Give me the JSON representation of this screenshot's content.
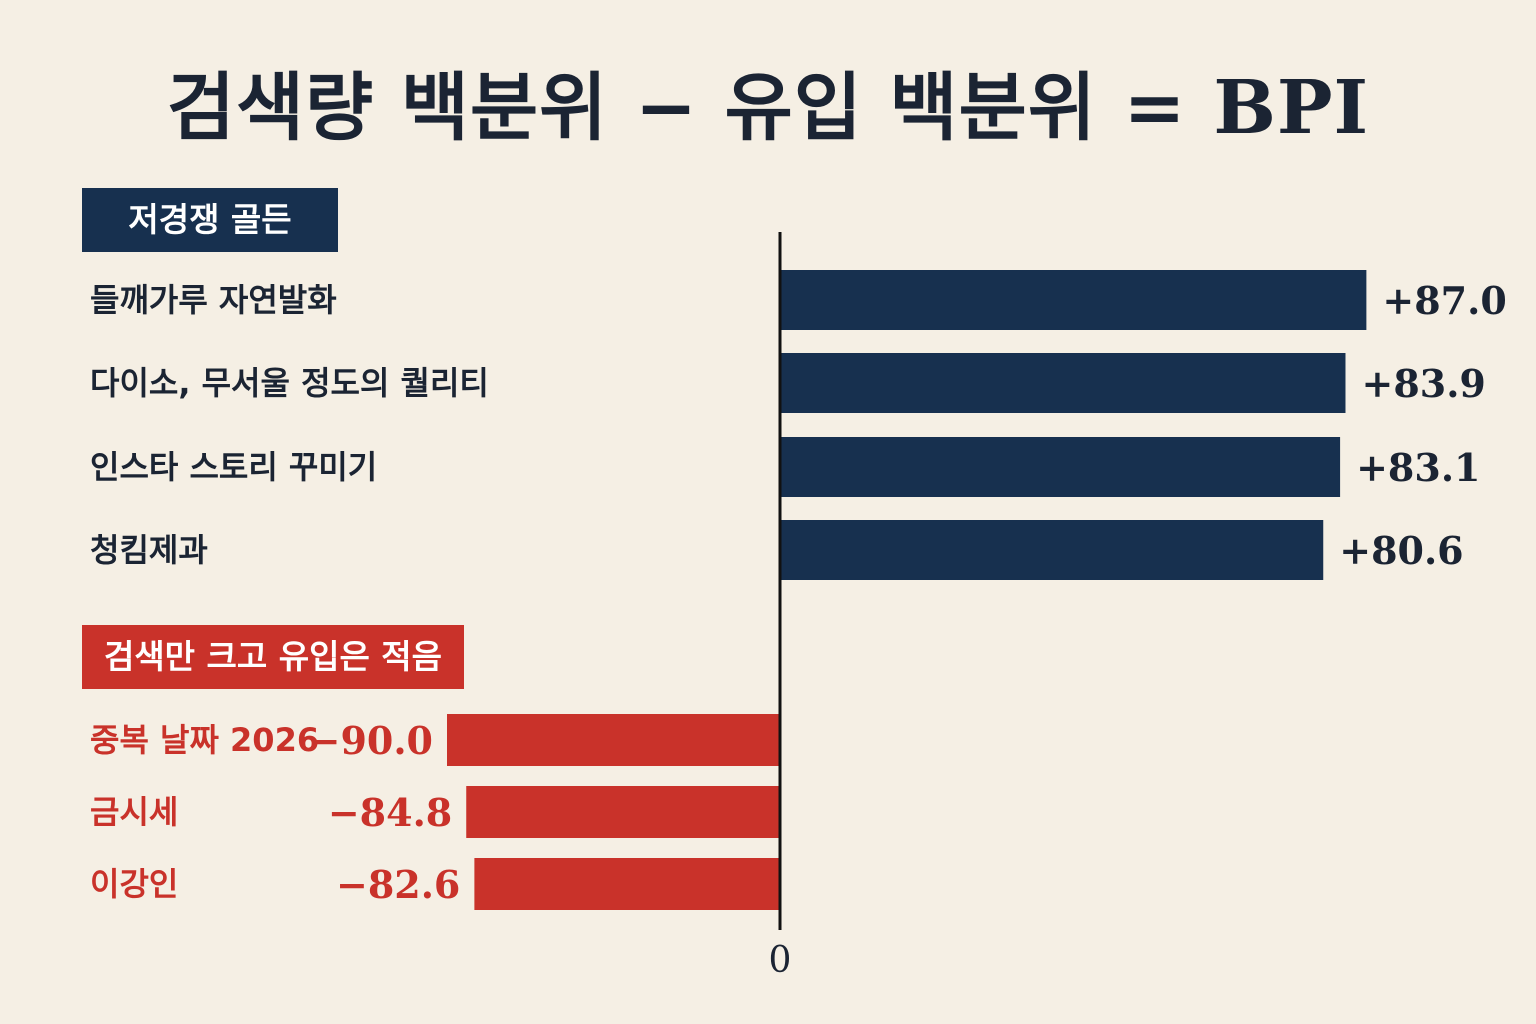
{
  "chart_data": {
    "type": "bar",
    "orientation": "horizontal",
    "title": "검색량 백분위 − 유입 백분위 = BPI",
    "zero_label": "0",
    "groups": [
      {
        "name": "저경쟁 골든",
        "color": "#17304f",
        "categories": [
          "들깨가루 자연발화",
          "다이소, 무서울 정도의 퀄리티",
          "인스타 스토리 꾸미기",
          "청킴제과"
        ],
        "values": [
          87.0,
          83.9,
          83.1,
          80.6
        ],
        "value_labels": [
          "+87.0",
          "+83.9",
          "+83.1",
          "+80.6"
        ]
      },
      {
        "name": "검색만 크고 유입은 적음",
        "color": "#c9322a",
        "categories": [
          "중복 날짜 2026",
          "금시세",
          "이강인"
        ],
        "values": [
          -90.0,
          -84.8,
          -82.6
        ],
        "value_labels": [
          "−90.0",
          "−84.8",
          "−82.6"
        ]
      }
    ],
    "xlim": [
      -100,
      100
    ],
    "grid": false,
    "legend": "none"
  },
  "colors": {
    "background": "#f5efe4",
    "text": "#1b2433",
    "positive": "#17304f",
    "negative": "#c9322a"
  }
}
